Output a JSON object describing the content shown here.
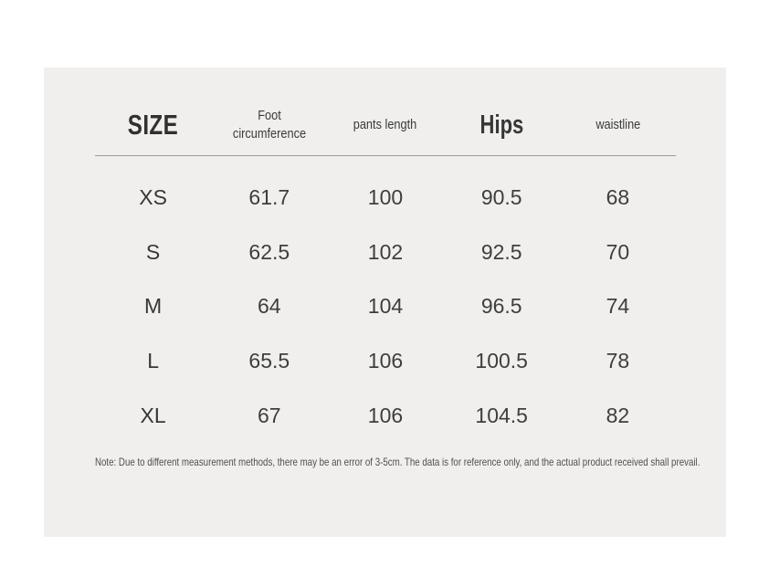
{
  "colors": {
    "page_background": "#ffffff",
    "card_background": "#f0efed",
    "header_text": "#32302c",
    "body_text": "#3e3e3e",
    "divider": "#9b9b9b",
    "note_text": "#4f4f4f"
  },
  "chart_data": {
    "type": "table",
    "columns": [
      "SIZE",
      "Foot circumference",
      "pants length",
      "Hips",
      "waistline"
    ],
    "rows": [
      [
        "XS",
        61.7,
        100,
        90.5,
        68
      ],
      [
        "S",
        62.5,
        102,
        92.5,
        70
      ],
      [
        "M",
        64,
        104,
        96.5,
        74
      ],
      [
        "L",
        65.5,
        106,
        100.5,
        78
      ],
      [
        "XL",
        67,
        106,
        104.5,
        82
      ]
    ],
    "note": "Note: Due to different measurement methods, there may be an error of 3-5cm. The data is for reference only, and the actual product received shall prevail."
  },
  "note": "Note: Due to different measurement methods, there may be an error of 3-5cm. The data is for reference only, and the actual product received shall prevail."
}
